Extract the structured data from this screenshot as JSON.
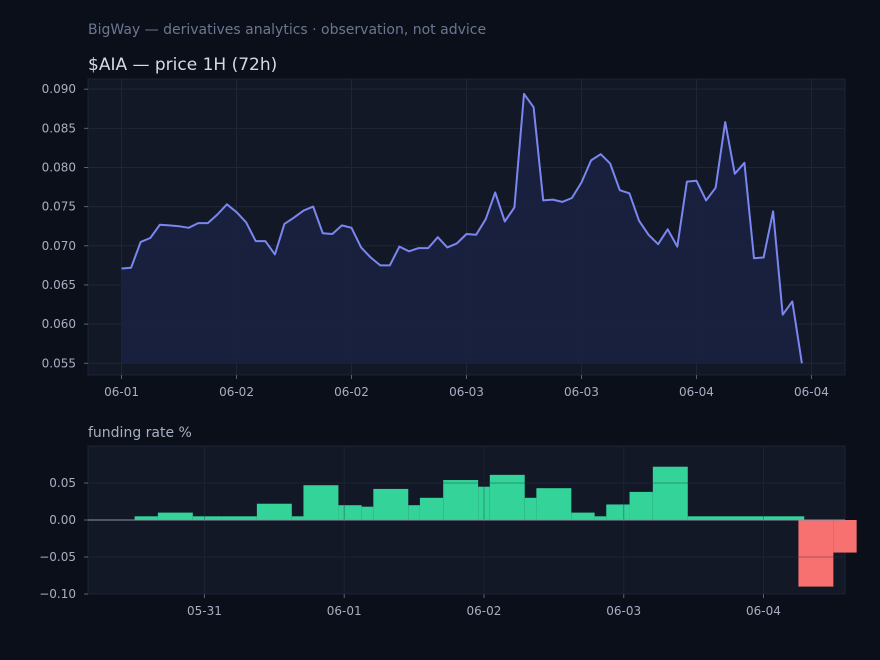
{
  "header": {
    "subtitle": "BigWay — derivatives analytics · observation, not advice"
  },
  "colors": {
    "background": "#0b0f1a",
    "panel": "#121826",
    "price_line": "#7b86f0",
    "price_fill": "#1a2140",
    "positive": "#34d399",
    "negative": "#f87171",
    "subtitle_text": "#6b7690",
    "title_text": "#d5dae6",
    "tick_text": "#a7afc0"
  },
  "chart_data": [
    {
      "type": "area",
      "title": "$AIA — price 1H (72h)",
      "xlabel": "",
      "ylabel": "",
      "ylim": [
        0.0535,
        0.0913
      ],
      "yticks": [
        0.055,
        0.06,
        0.065,
        0.07,
        0.075,
        0.08,
        0.085,
        0.09
      ],
      "ytick_labels": [
        "0.055",
        "0.060",
        "0.065",
        "0.070",
        "0.075",
        "0.080",
        "0.085",
        "0.090"
      ],
      "xticks": [
        0,
        12,
        24,
        36,
        48,
        60,
        72
      ],
      "xtick_labels": [
        "06-01",
        "06-02",
        "06-02",
        "06-03",
        "06-03",
        "06-04",
        "06-04"
      ],
      "xlim": [
        -3.5,
        75.5
      ],
      "grid": true,
      "x": [
        0,
        1,
        2,
        3,
        4,
        5,
        6,
        7,
        8,
        9,
        10,
        11,
        12,
        13,
        14,
        15,
        16,
        17,
        18,
        19,
        20,
        21,
        22,
        23,
        24,
        25,
        26,
        27,
        28,
        29,
        30,
        31,
        32,
        33,
        34,
        35,
        36,
        37,
        38,
        39,
        40,
        41,
        42,
        43,
        44,
        45,
        46,
        47,
        48,
        49,
        50,
        51,
        52,
        53,
        54,
        55,
        56,
        57,
        58,
        59,
        60,
        61,
        62,
        63,
        64,
        65,
        66,
        67,
        68,
        69,
        70,
        71
      ],
      "values": [
        0.0671,
        0.0672,
        0.0705,
        0.071,
        0.0727,
        0.0726,
        0.0725,
        0.0723,
        0.0729,
        0.0729,
        0.074,
        0.0753,
        0.0743,
        0.073,
        0.0706,
        0.0706,
        0.0689,
        0.0728,
        0.0736,
        0.0745,
        0.075,
        0.0716,
        0.0715,
        0.0726,
        0.0723,
        0.0698,
        0.0685,
        0.0675,
        0.0675,
        0.0699,
        0.0693,
        0.0697,
        0.0697,
        0.0711,
        0.0698,
        0.0703,
        0.0715,
        0.0714,
        0.0734,
        0.0768,
        0.0731,
        0.0749,
        0.0894,
        0.0877,
        0.0758,
        0.0759,
        0.0756,
        0.0761,
        0.0781,
        0.0809,
        0.0817,
        0.0805,
        0.0771,
        0.0767,
        0.0732,
        0.0714,
        0.0702,
        0.0721,
        0.0699,
        0.0782,
        0.0783,
        0.0758,
        0.0774,
        0.0858,
        0.0792,
        0.0806,
        0.0684,
        0.0685,
        0.0744,
        0.0612,
        0.0629,
        0.055
      ]
    },
    {
      "type": "bar",
      "title": "funding rate %",
      "xlabel": "",
      "ylabel": "",
      "ylim": [
        -0.1,
        0.1
      ],
      "yticks": [
        -0.1,
        -0.05,
        0.0,
        0.05
      ],
      "ytick_labels": [
        "−0.10",
        "−0.05",
        "0.00",
        "0.05"
      ],
      "xticks": [
        0,
        12,
        24,
        36,
        48,
        60
      ],
      "xtick_labels": [
        "05-31",
        "06-01",
        "06-02",
        "06-03",
        "06-04"
      ],
      "xtick_positions": [
        6,
        18,
        30,
        42,
        54
      ],
      "xlim": [
        -4,
        61
      ],
      "grid": true,
      "bars": [
        {
          "x0": 0,
          "x1": 2,
          "value": 0.005
        },
        {
          "x0": 2,
          "x1": 5,
          "value": 0.01
        },
        {
          "x0": 5,
          "x1": 7.5,
          "value": 0.005
        },
        {
          "x0": 7.5,
          "x1": 10.5,
          "value": 0.005
        },
        {
          "x0": 10.5,
          "x1": 13.5,
          "value": 0.022
        },
        {
          "x0": 13.5,
          "x1": 14.5,
          "value": 0.005
        },
        {
          "x0": 14.5,
          "x1": 17.5,
          "value": 0.047
        },
        {
          "x0": 17.5,
          "x1": 19.5,
          "value": 0.02
        },
        {
          "x0": 19.5,
          "x1": 20.5,
          "value": 0.018
        },
        {
          "x0": 20.5,
          "x1": 23.5,
          "value": 0.042
        },
        {
          "x0": 23.5,
          "x1": 24.5,
          "value": 0.02
        },
        {
          "x0": 24.5,
          "x1": 26.5,
          "value": 0.03
        },
        {
          "x0": 26.5,
          "x1": 29.5,
          "value": 0.054
        },
        {
          "x0": 29.5,
          "x1": 30.5,
          "value": 0.045
        },
        {
          "x0": 30.5,
          "x1": 33.5,
          "value": 0.061
        },
        {
          "x0": 33.5,
          "x1": 34.5,
          "value": 0.03
        },
        {
          "x0": 34.5,
          "x1": 37.5,
          "value": 0.043
        },
        {
          "x0": 37.5,
          "x1": 39.5,
          "value": 0.01
        },
        {
          "x0": 39.5,
          "x1": 40.5,
          "value": 0.005
        },
        {
          "x0": 40.5,
          "x1": 42.5,
          "value": 0.021
        },
        {
          "x0": 42.5,
          "x1": 44.5,
          "value": 0.038
        },
        {
          "x0": 44.5,
          "x1": 47.5,
          "value": 0.072
        },
        {
          "x0": 47.5,
          "x1": 57.5,
          "value": 0.005
        },
        {
          "x0": 57,
          "x1": 60,
          "value": -0.09
        },
        {
          "x0": 60,
          "x1": 62,
          "value": -0.044
        }
      ]
    }
  ]
}
